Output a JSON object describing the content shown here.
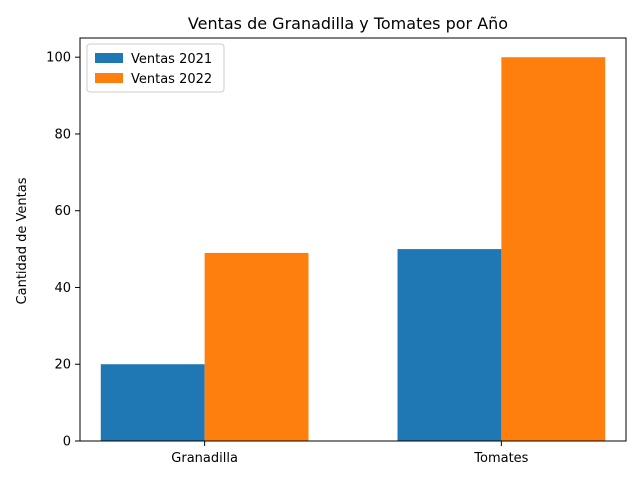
{
  "chart_data": {
    "type": "bar",
    "title": "Ventas de Granadilla y Tomates por Año",
    "xlabel": "",
    "ylabel": "Cantidad de Ventas",
    "categories": [
      "Granadilla",
      "Tomates"
    ],
    "series": [
      {
        "name": "Ventas 2021",
        "values": [
          20,
          50
        ],
        "color": "#1f77b4"
      },
      {
        "name": "Ventas 2022",
        "values": [
          49,
          100
        ],
        "color": "#ff7f0e"
      }
    ],
    "ylim": [
      0,
      105
    ],
    "yticks": [
      0,
      20,
      40,
      60,
      80,
      100
    ],
    "grid": false,
    "legend_position": "top-left"
  }
}
